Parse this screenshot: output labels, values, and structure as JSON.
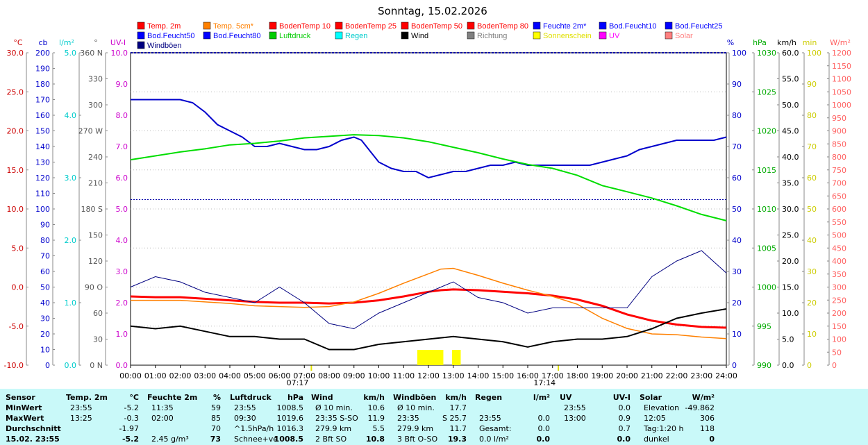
{
  "title": "Sonntag, 15.02.2026",
  "legend": [
    {
      "label": "Temp. 2m",
      "color": "#ff0000"
    },
    {
      "label": "Temp. 5cm*",
      "color": "#ff8000"
    },
    {
      "label": "BodenTemp 10",
      "color": "#ff0000"
    },
    {
      "label": "BodenTemp 25",
      "color": "#ff0000"
    },
    {
      "label": "BodenTemp 50",
      "color": "#ff0000"
    },
    {
      "label": "BodenTemp 80",
      "color": "#ff0000"
    },
    {
      "label": "Feuchte 2m*",
      "color": "#0000ff"
    },
    {
      "label": "Bod.Feucht10",
      "color": "#0000ff"
    },
    {
      "label": "Bod.Feucht25",
      "color": "#0000ff"
    },
    {
      "label": "Bod.Feucht50",
      "color": "#0000ff"
    },
    {
      "label": "Bod.Feucht80",
      "color": "#0000ff"
    },
    {
      "label": "Luftdruck",
      "color": "#00cc00"
    },
    {
      "label": "Regen",
      "color": "#00ffff"
    },
    {
      "label": "Wind",
      "color": "#000000"
    },
    {
      "label": "Richtung",
      "color": "#808080"
    },
    {
      "label": "Sonnenschein",
      "color": "#ffff00"
    },
    {
      "label": "UV",
      "color": "#ff00ff"
    },
    {
      "label": "Solar",
      "color": "#ff8080"
    },
    {
      "label": "Windböen",
      "color": "#000080"
    }
  ],
  "axes": {
    "temp": {
      "unit": "°C",
      "ticks": [
        "30.0",
        "25.0",
        "20.0",
        "15.0",
        "10.0",
        "5.0",
        "0.0",
        "-5.0",
        "-10.0"
      ],
      "color": "#cc0000"
    },
    "cb": {
      "unit": "cb",
      "ticks": [
        "200",
        "190",
        "180",
        "170",
        "160",
        "150",
        "140",
        "130",
        "120",
        "110",
        "100",
        "90",
        "80",
        "70",
        "60",
        "50",
        "40",
        "30",
        "20",
        "10",
        "0"
      ],
      "color": "#0000cc"
    },
    "rain": {
      "unit": "l/m²",
      "ticks": [
        "5.0",
        "4.0",
        "3.0",
        "2.0",
        "1.0",
        "0.0"
      ],
      "color": "#00cccc"
    },
    "dir": {
      "unit": "°",
      "ticks": [
        "360 N",
        "330",
        "300",
        "270 W",
        "240",
        "210",
        "180 S",
        "150",
        "120",
        "90 O",
        "60",
        "30",
        "0 N"
      ],
      "color": "#555555"
    },
    "uv": {
      "unit": "UV-I",
      "ticks": [
        "10.0",
        "9.0",
        "8.0",
        "7.0",
        "6.0",
        "5.0",
        "4.0",
        "3.0",
        "2.0",
        "1.0",
        "0.0"
      ],
      "color": "#cc00cc"
    },
    "hum": {
      "unit": "%",
      "ticks": [
        "100",
        "90",
        "80",
        "70",
        "60",
        "50",
        "40",
        "30",
        "20",
        "10",
        "0"
      ],
      "color": "#0000cc"
    },
    "press": {
      "unit": "hPa",
      "ticks": [
        "1030",
        "1025",
        "1020",
        "1015",
        "1010",
        "1005",
        "1000",
        "995",
        "990"
      ],
      "color": "#00aa00"
    },
    "wind": {
      "unit": "km/h",
      "ticks": [
        "60.0",
        "55.0",
        "50.0",
        "45.0",
        "40.0",
        "35.0",
        "30.0",
        "25.0",
        "20.0",
        "15.0",
        "10.0",
        "5.0",
        "0.0"
      ],
      "color": "#000000"
    },
    "min": {
      "unit": "min",
      "ticks": [
        "100",
        "90",
        "80",
        "70",
        "60",
        "50",
        "40",
        "30",
        "20",
        "10",
        "0"
      ],
      "color": "#cccc00"
    },
    "solar": {
      "unit": "W/m²",
      "ticks": [
        "1200",
        "1150",
        "1100",
        "1050",
        "1000",
        "950",
        "900",
        "850",
        "800",
        "750",
        "700",
        "650",
        "600",
        "550",
        "500",
        "450",
        "400",
        "350",
        "300",
        "250",
        "200",
        "150",
        "100",
        "50",
        "0"
      ],
      "color": "#ff6060"
    }
  },
  "x_ticks": [
    "00:00",
    "01:00",
    "02:00",
    "03:00",
    "04:00",
    "05:00",
    "06:00",
    "07:00",
    "08:00",
    "09:00",
    "10:00",
    "11:00",
    "12:00",
    "13:00",
    "14:00",
    "15:00",
    "16:00",
    "17:00",
    "18:00",
    "19:00",
    "20:00",
    "21:00",
    "22:00",
    "23:00",
    "24:00"
  ],
  "sunrise": "07:17",
  "sunset": "17:14",
  "chart_data": {
    "type": "line",
    "x_unit": "hours",
    "series": [
      {
        "name": "Temp. 2m",
        "axis": "temp",
        "x": [
          0,
          1,
          2,
          3,
          4,
          5,
          6,
          7,
          8,
          9,
          10,
          11,
          12,
          12.5,
          13,
          14,
          15,
          16,
          17,
          18,
          19,
          20,
          21,
          22,
          23,
          24
        ],
        "values": [
          -1.2,
          -1.3,
          -1.3,
          -1.5,
          -1.7,
          -1.9,
          -2.0,
          -2.0,
          -2.1,
          -2.0,
          -1.7,
          -1.2,
          -0.6,
          -0.4,
          -0.3,
          -0.4,
          -0.6,
          -0.8,
          -1.1,
          -1.6,
          -2.4,
          -3.5,
          -4.3,
          -4.8,
          -5.1,
          -5.2
        ]
      },
      {
        "name": "Temp. 5cm*",
        "axis": "temp",
        "x": [
          0,
          1,
          2,
          3,
          4,
          5,
          6,
          7,
          8,
          9,
          10,
          11,
          12,
          12.5,
          13,
          14,
          15,
          16,
          17,
          18,
          19,
          20,
          21,
          22,
          23,
          24
        ],
        "values": [
          -1.7,
          -1.7,
          -1.7,
          -1.9,
          -2.1,
          -2.4,
          -2.5,
          -2.6,
          -2.5,
          -1.9,
          -0.8,
          0.5,
          1.7,
          2.3,
          2.4,
          1.5,
          0.5,
          -0.4,
          -1.2,
          -2.2,
          -4.0,
          -5.3,
          -6.0,
          -6.1,
          -6.4,
          -6.6
        ]
      },
      {
        "name": "Feuchte 2m*",
        "axis": "hum",
        "x": [
          0,
          1,
          2,
          2.5,
          3,
          3.5,
          4,
          4.5,
          5,
          5.5,
          6,
          6.5,
          7,
          7.5,
          8,
          8.5,
          9,
          9.3,
          9.6,
          10,
          10.5,
          11,
          11.5,
          12,
          12.5,
          13,
          13.5,
          14,
          14.5,
          15,
          15.5,
          16,
          16.5,
          17,
          17.5,
          18,
          18.5,
          19,
          19.5,
          20,
          20.5,
          21,
          21.5,
          22,
          22.5,
          23,
          23.5,
          24
        ],
        "values": [
          85,
          85,
          85,
          84,
          81,
          77,
          75,
          73,
          70,
          70,
          71,
          70,
          69,
          69,
          70,
          72,
          73,
          72,
          69,
          65,
          63,
          62,
          62,
          60,
          61,
          62,
          62,
          63,
          64,
          64,
          65,
          64,
          64,
          64,
          64,
          64,
          64,
          65,
          66,
          67,
          69,
          70,
          71,
          72,
          72,
          72,
          72,
          73
        ]
      },
      {
        "name": "Bod.Feucht80",
        "axis": "hum",
        "x": [
          0,
          24
        ],
        "values": [
          53,
          53
        ]
      },
      {
        "name": "Bod.Feucht80 b",
        "axis": "hum",
        "x": [
          0,
          24
        ],
        "values": [
          100,
          100
        ]
      },
      {
        "name": "Luftdruck",
        "axis": "press",
        "x": [
          0,
          1,
          2,
          3,
          4,
          5,
          6,
          7,
          8,
          9,
          10,
          11,
          12,
          13,
          14,
          15,
          16,
          17,
          18,
          19,
          20,
          21,
          22,
          23,
          24
        ],
        "values": [
          1016.3,
          1016.8,
          1017.3,
          1017.7,
          1018.2,
          1018.4,
          1018.7,
          1019.1,
          1019.3,
          1019.5,
          1019.4,
          1019.1,
          1018.6,
          1017.9,
          1017.2,
          1016.4,
          1015.7,
          1015.2,
          1014.3,
          1013.0,
          1012.2,
          1011.4,
          1010.4,
          1009.3,
          1008.5
        ]
      },
      {
        "name": "Wind",
        "axis": "wind",
        "x": [
          0,
          1,
          2,
          3,
          4,
          5,
          6,
          7,
          8,
          9,
          10,
          11,
          12,
          13,
          14,
          15,
          16,
          17,
          18,
          19,
          20,
          21,
          22,
          23,
          24
        ],
        "values": [
          7.5,
          7.0,
          7.5,
          6.5,
          5.5,
          5.5,
          5.0,
          5.0,
          3.0,
          3.0,
          4.0,
          4.5,
          5.0,
          5.5,
          5.0,
          4.5,
          3.5,
          4.5,
          5.0,
          5.0,
          5.5,
          7.0,
          9.0,
          10.0,
          10.8
        ]
      },
      {
        "name": "Windböen",
        "axis": "wind",
        "x": [
          0,
          1,
          2,
          3,
          4,
          5,
          6,
          7,
          8,
          9,
          10,
          11,
          12,
          13,
          14,
          15,
          16,
          17,
          18,
          19,
          20,
          21,
          22,
          23,
          24
        ],
        "values": [
          15,
          17,
          16,
          14,
          13,
          12,
          15,
          12,
          8,
          7,
          10,
          12,
          14,
          16,
          13,
          12,
          10,
          11,
          11,
          11,
          11,
          17,
          20,
          22,
          17.7
        ]
      },
      {
        "name": "Sonnenschein",
        "axis": "min",
        "x": [
          11.5,
          12.0,
          12.6,
          13.0
        ],
        "values": [
          8,
          9,
          8,
          9
        ]
      }
    ],
    "xlim": [
      0,
      24
    ],
    "sunshine_blocks": [
      [
        11.55,
        12.6
      ],
      [
        12.95,
        13.3
      ]
    ]
  },
  "panel": {
    "columns": [
      {
        "title": "Sensor",
        "rows": [
          "MinWert",
          "MaxWert",
          "Durchschnitt",
          "15.02. 23:55"
        ]
      },
      {
        "title": "Temp. 2m",
        "unit": "°C",
        "rows": [
          [
            "23:55",
            "-5.2"
          ],
          [
            "13:25",
            "-0.3"
          ],
          [
            "",
            "-1.97"
          ],
          [
            "",
            "-5.2"
          ]
        ]
      },
      {
        "title": "Feuchte 2m",
        "unit": "%",
        "rows": [
          [
            "11:35",
            "59"
          ],
          [
            "02:00",
            "85"
          ],
          [
            "",
            "70"
          ],
          [
            "2.45 g/m³",
            "73"
          ]
        ]
      },
      {
        "title": "Luftdruck",
        "unit": "hPa",
        "rows": [
          [
            "23:55",
            "1008.5"
          ],
          [
            "09:30",
            "1019.6"
          ],
          [
            "^1.5hPa/h",
            "1016.3"
          ],
          [
            "Schnee+ve",
            "1008.5"
          ]
        ]
      },
      {
        "title": "Wind",
        "unit": "km/h",
        "rows": [
          [
            "Ø 10 min.",
            "10.6"
          ],
          [
            "23:35  S-SO",
            "11.9"
          ],
          [
            "279.9 km",
            "5.5"
          ],
          [
            "2 Bft SO",
            "10.8"
          ]
        ]
      },
      {
        "title": "Windböen",
        "unit": "km/h",
        "rows": [
          [
            "Ø 10 min.",
            "17.7"
          ],
          [
            "23:35",
            "S 25.7"
          ],
          [
            "279.9 km",
            "11.7"
          ],
          [
            "3 Bft O-SO",
            "19.3"
          ]
        ]
      },
      {
        "title": "Regen",
        "unit": "l/m²",
        "rows": [
          [
            "",
            ""
          ],
          [
            "23:55",
            "0.0"
          ],
          [
            "Gesamt:",
            "0.0"
          ],
          [
            "0.0 l/m²",
            "0.0"
          ]
        ]
      },
      {
        "title": "UV",
        "unit": "UV-I",
        "rows": [
          [
            "23:55",
            "0.0"
          ],
          [
            "13:00",
            "0.9"
          ],
          [
            "",
            "0.7"
          ],
          [
            "",
            "0.0"
          ]
        ]
      },
      {
        "title": "Solar",
        "unit": "W/m²",
        "rows": [
          [
            "Elevation",
            "-49.862"
          ],
          [
            "12:05",
            "306"
          ],
          [
            "Tag:1:20 h",
            "118"
          ],
          [
            "dunkel",
            "0"
          ]
        ]
      }
    ]
  }
}
